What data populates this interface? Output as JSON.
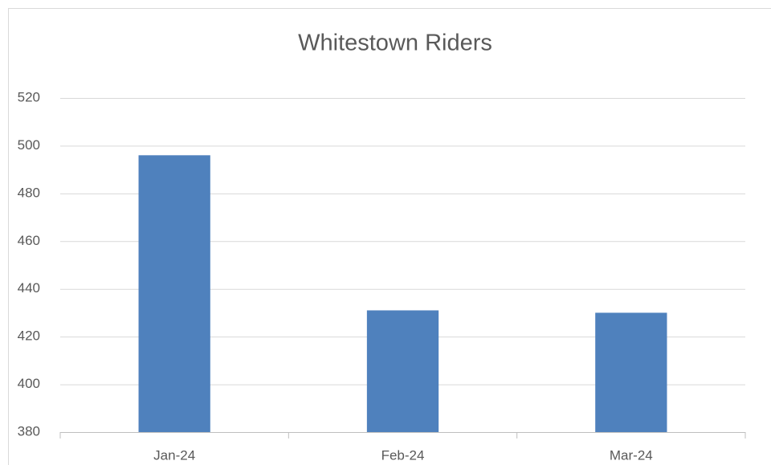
{
  "chart_data": {
    "type": "bar",
    "title": "Whitestown Riders",
    "categories": [
      "Jan-24",
      "Feb-24",
      "Mar-24"
    ],
    "values": [
      496,
      431,
      430
    ],
    "color": "#4f81bd",
    "ylim": [
      380,
      520
    ],
    "yticks": [
      380,
      400,
      420,
      440,
      460,
      480,
      500,
      520
    ],
    "grid": true
  }
}
